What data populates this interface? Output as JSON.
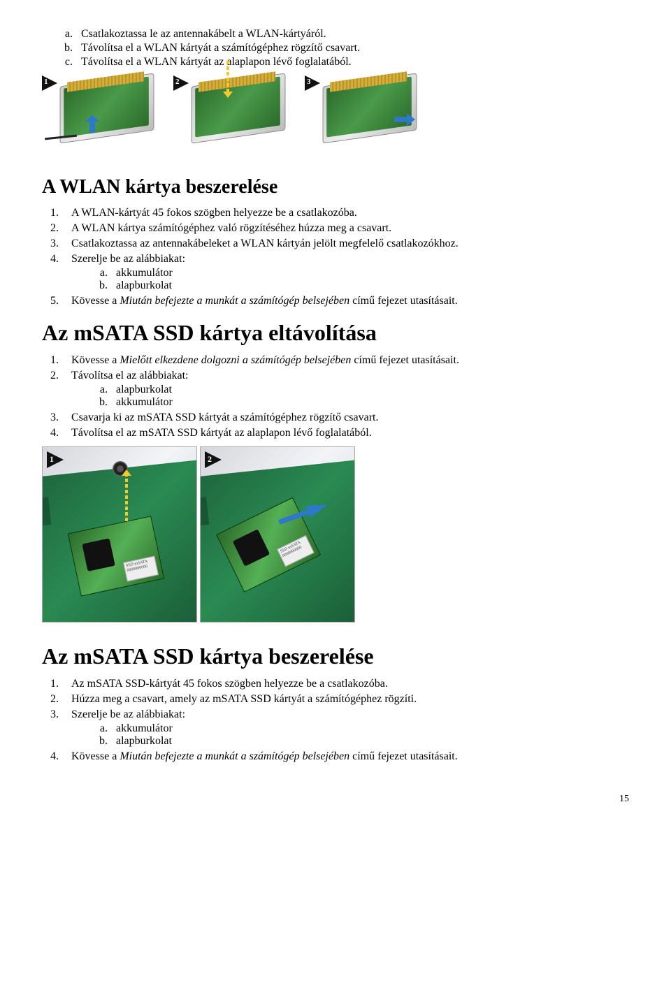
{
  "intro_list": {
    "a": "Csatlakoztassa le az antennakábelt a WLAN-kártyáról.",
    "b": "Távolítsa el a WLAN kártyát a számítógéphez rögzítő csavart.",
    "c": "Távolítsa el a WLAN kártyát az alaplapon lévő foglalatából."
  },
  "fig1_badges": [
    "1",
    "2",
    "3"
  ],
  "section1": {
    "title": "A WLAN kártya beszerelése",
    "steps": {
      "1": "A WLAN-kártyát 45 fokos szögben helyezze be a csatlakozóba.",
      "2": "A WLAN kártya számítógéphez való rögzítéséhez húzza meg a csavart.",
      "3": "Csatlakoztassa az antennakábeleket a WLAN kártyán jelölt megfelelő csatlakozókhoz.",
      "4_lead": "Szerelje be az alábbiakat:",
      "4a": "akkumulátor",
      "4b": "alapburkolat",
      "5_pre": "Kövesse a ",
      "5_it": "Miután befejezte a munkát a számítógép belsejében",
      "5_post": " című fejezet utasításait."
    }
  },
  "section2": {
    "title": "Az mSATA SSD kártya eltávolítása",
    "steps": {
      "1_pre": "Kövesse a ",
      "1_it": "Mielőtt elkezdene dolgozni a számítógép belsejében",
      "1_post": " című fejezet utasításait.",
      "2_lead": "Távolítsa el az alábbiakat:",
      "2a": "alapburkolat",
      "2b": "akkumulátor",
      "3": "Csavarja ki az mSATA SSD kártyát a számítógéphez rögzítő csavart.",
      "4": "Távolítsa el az mSATA SSD kártyát az alaplapon lévő foglalatából."
    }
  },
  "fig2_badges": [
    "1",
    "2"
  ],
  "section3": {
    "title": "Az mSATA SSD kártya beszerelése",
    "steps": {
      "1": "Az mSATA SSD-kártyát 45 fokos szögben helyezze be a csatlakozóba.",
      "2": "Húzza meg a csavart, amely az mSATA SSD kártyát a számítógéphez rögzíti.",
      "3_lead": "Szerelje be az alábbiakat:",
      "3a": "akkumulátor",
      "3b": "alapburkolat",
      "4_pre": "Kövesse a ",
      "4_it": "Miután befejezte a munkát a számítógép belsejében",
      "4_post": " című fejezet utasításait."
    }
  },
  "page_number": "15",
  "colors": {
    "text": "#000000",
    "arrow_blue": "#2d78c8",
    "arrow_yellow": "#f4c92c",
    "pcb_green1": "#2b6b2b",
    "pcb_green2": "#4a9a4a",
    "mboard_g1": "#1c5f3a",
    "mboard_g2": "#2a8a52",
    "gold": "#d4af37",
    "badge_bg": "#111111"
  },
  "fonts": {
    "body_family": "Times New Roman",
    "body_size_pt": 12,
    "h1_size_pt": 22,
    "h1_big_pt": 24
  }
}
